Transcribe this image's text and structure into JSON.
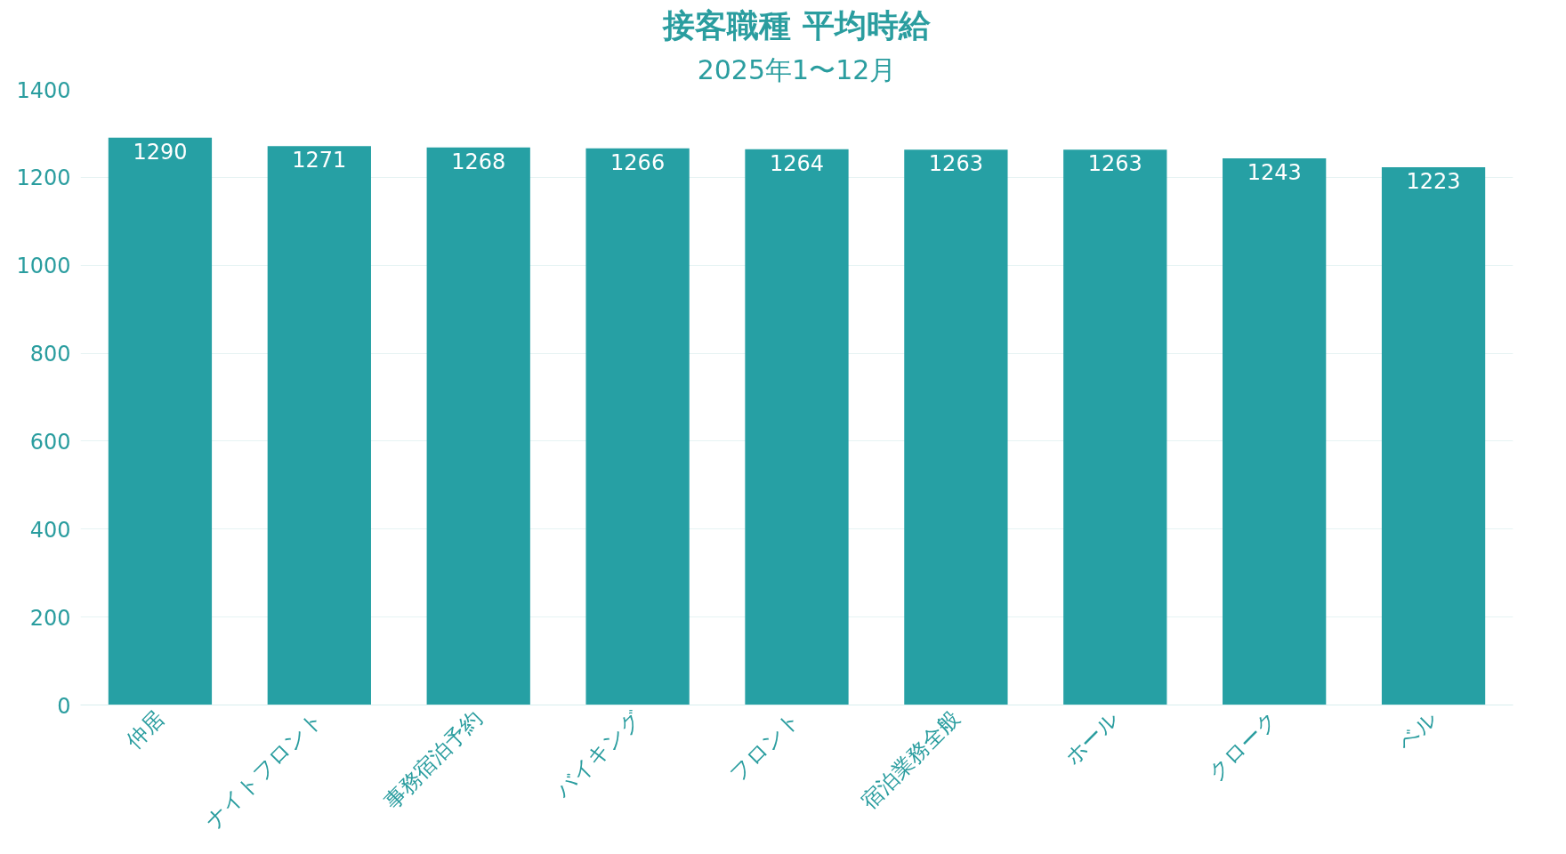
{
  "chart_data": {
    "type": "bar",
    "title": "接客職種 平均時給",
    "subtitle": "2025年1〜12月",
    "categories": [
      "仲居",
      "ナイトフロント",
      "事務宿泊予約",
      "バイキング",
      "フロント",
      "宿泊業務全般",
      "ホール",
      "クローク",
      "ベル"
    ],
    "values": [
      1290,
      1271,
      1268,
      1266,
      1264,
      1263,
      1263,
      1243,
      1223
    ],
    "color": "#26a0a4",
    "ylim": [
      0,
      1400
    ],
    "yticks": [
      0,
      200,
      400,
      600,
      800,
      1000,
      1200,
      1400
    ],
    "grid": "y",
    "data_labels": true
  }
}
